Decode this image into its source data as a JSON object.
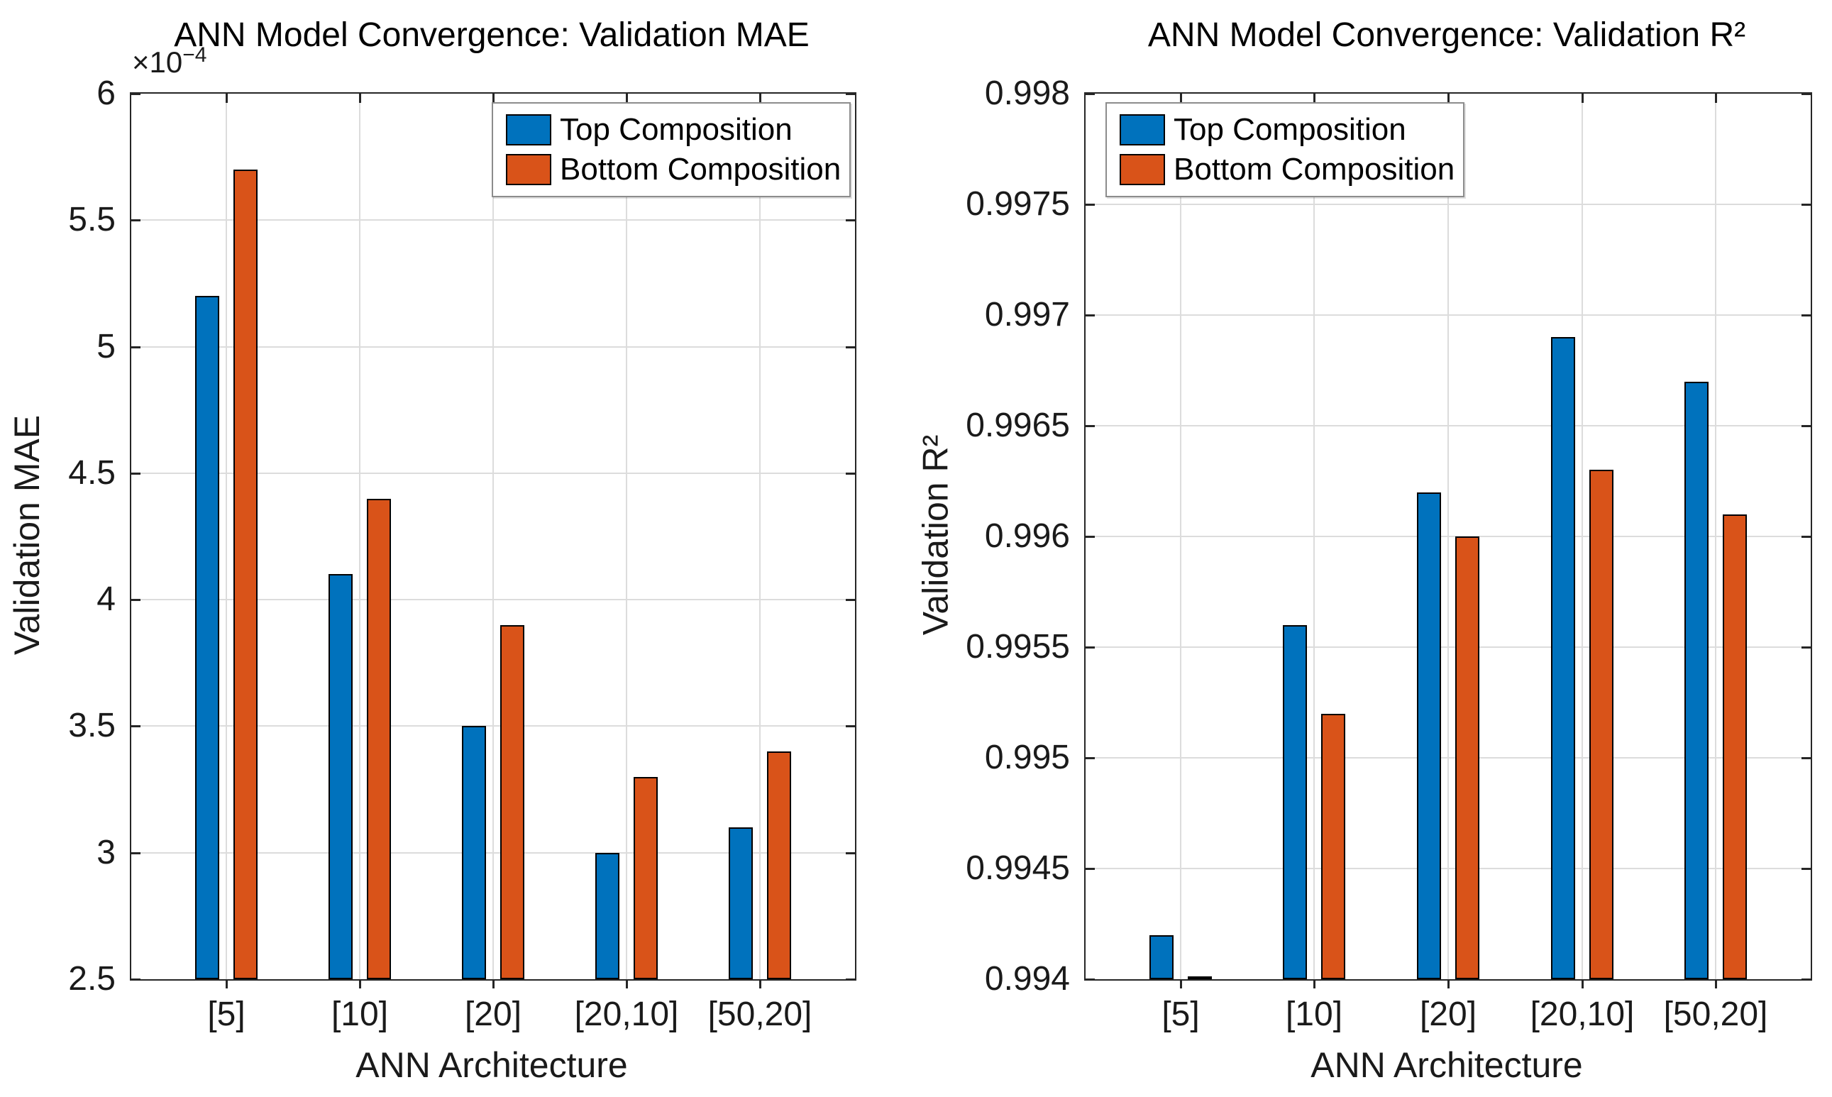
{
  "style": {
    "background": "#ffffff",
    "axis_color": "#262626",
    "grid_color": "#dcdcdc",
    "bar_edge_color": "#000000",
    "legend_border_color": "#8c8c8c",
    "series_blue": "#0072BD",
    "series_orange": "#D95319"
  },
  "chart_data": [
    {
      "type": "bar",
      "title": "ANN Model Convergence: Validation MAE",
      "xlabel": "ANN Architecture",
      "ylabel": "Validation MAE",
      "y_offset": {
        "base": "×10",
        "exp": "−4"
      },
      "categories": [
        "[5]",
        "[10]",
        "[20]",
        "[20,10]",
        "[50,20]"
      ],
      "series": [
        {
          "name": "Top Composition",
          "color": "#0072BD",
          "values": [
            0.00052,
            0.00041,
            0.00035,
            0.0003,
            0.00031
          ]
        },
        {
          "name": "Bottom Composition",
          "color": "#D95319",
          "values": [
            0.00057,
            0.00044,
            0.00039,
            0.00033,
            0.00034
          ]
        }
      ],
      "ylim": [
        0.00025,
        0.0006
      ],
      "yticks": [
        {
          "value": 0.00025,
          "label": "2.5"
        },
        {
          "value": 0.0003,
          "label": "3"
        },
        {
          "value": 0.00035,
          "label": "3.5"
        },
        {
          "value": 0.0004,
          "label": "4"
        },
        {
          "value": 0.00045,
          "label": "4.5"
        },
        {
          "value": 0.0005,
          "label": "5"
        },
        {
          "value": 0.00055,
          "label": "5.5"
        },
        {
          "value": 0.0006,
          "label": "6"
        }
      ],
      "grid": true,
      "legend_position": "top-right"
    },
    {
      "type": "bar",
      "title": "ANN Model Convergence: Validation R²",
      "xlabel": "ANN Architecture",
      "ylabel": "Validation R²",
      "categories": [
        "[5]",
        "[10]",
        "[20]",
        "[20,10]",
        "[50,20]"
      ],
      "series": [
        {
          "name": "Top Composition",
          "color": "#0072BD",
          "values": [
            0.9942,
            0.9956,
            0.9962,
            0.9969,
            0.9967
          ]
        },
        {
          "name": "Bottom Composition",
          "color": "#D95319",
          "values": [
            0.994,
            0.9952,
            0.996,
            0.9963,
            0.9961
          ]
        }
      ],
      "ylim": [
        0.994,
        0.998
      ],
      "yticks": [
        {
          "value": 0.994,
          "label": "0.994"
        },
        {
          "value": 0.9945,
          "label": "0.9945"
        },
        {
          "value": 0.995,
          "label": "0.995"
        },
        {
          "value": 0.9955,
          "label": "0.9955"
        },
        {
          "value": 0.996,
          "label": "0.996"
        },
        {
          "value": 0.9965,
          "label": "0.9965"
        },
        {
          "value": 0.997,
          "label": "0.997"
        },
        {
          "value": 0.9975,
          "label": "0.9975"
        },
        {
          "value": 0.998,
          "label": "0.998"
        }
      ],
      "grid": true,
      "legend_position": "top-left"
    }
  ]
}
